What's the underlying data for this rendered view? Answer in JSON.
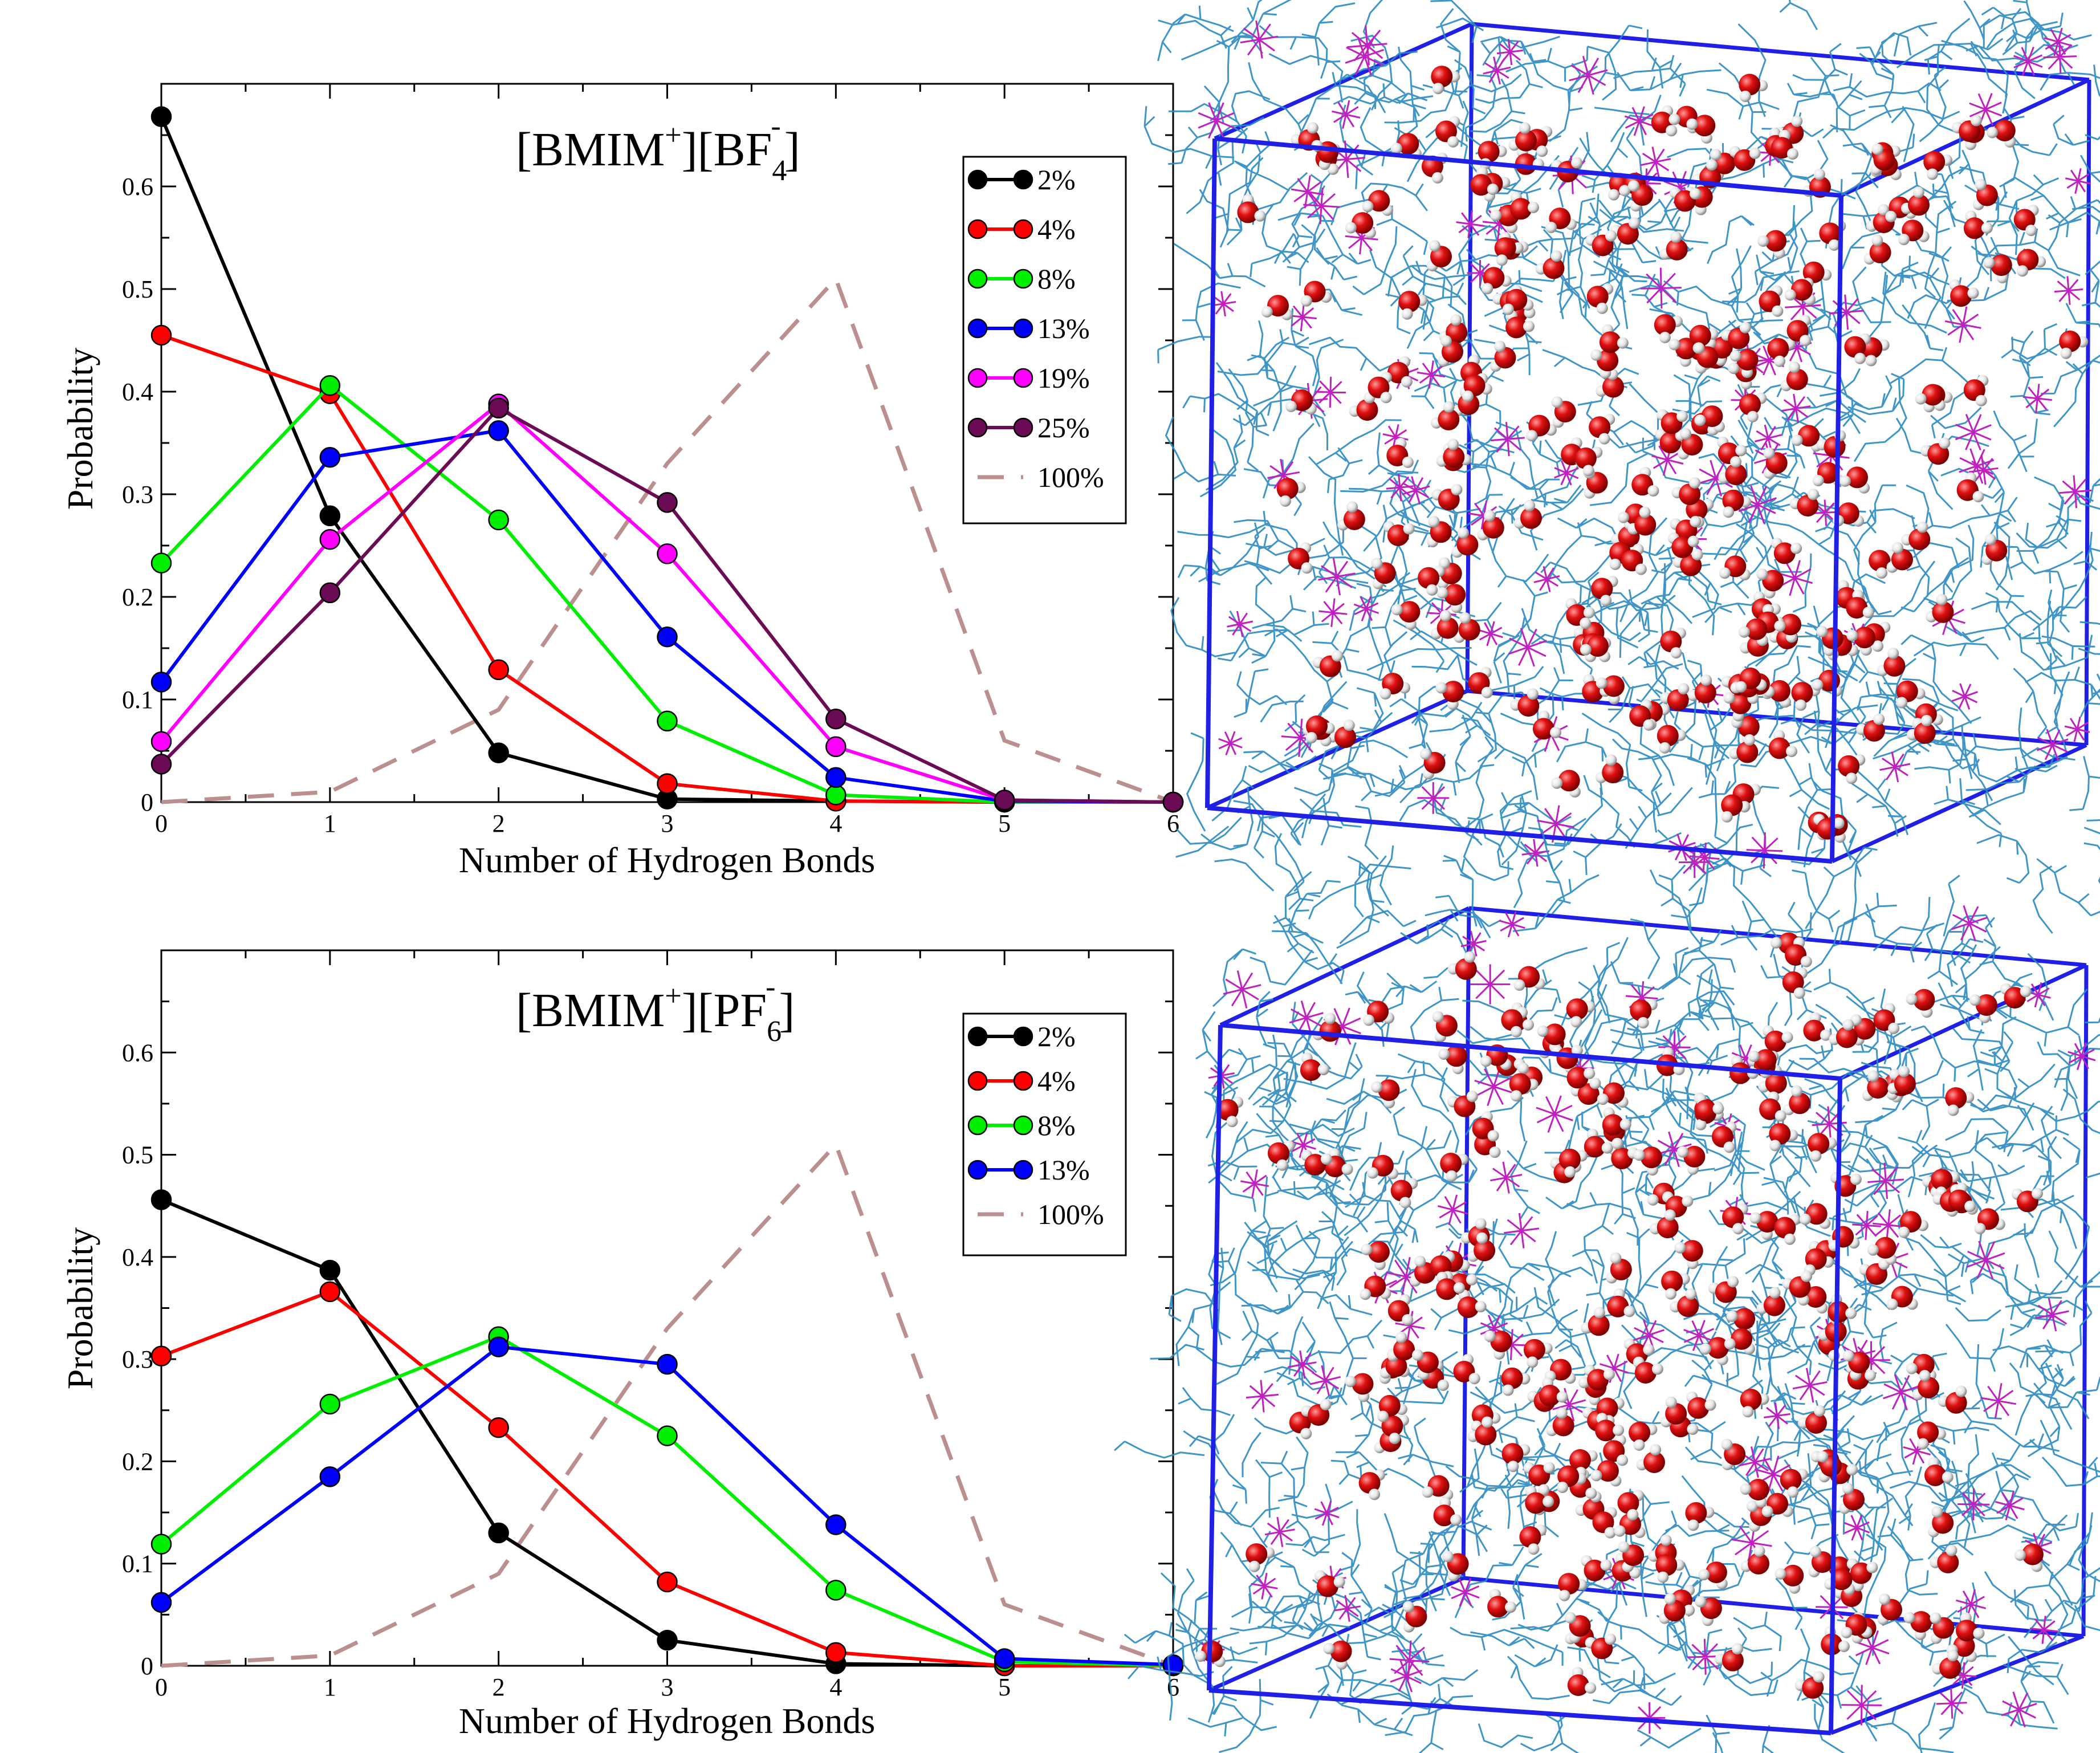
{
  "chart_data": [
    {
      "type": "line",
      "title": {
        "base": "[BMIM",
        "sup1": "+",
        "mid": "][BF",
        "sub": "4",
        "sup2": "-",
        "end": "]"
      },
      "xlabel": "Number of Hydrogen Bonds",
      "ylabel": "Probability",
      "x": [
        0,
        1,
        2,
        3,
        4,
        5,
        6
      ],
      "xlim": [
        0,
        6
      ],
      "ylim": [
        0,
        0.7
      ],
      "xticks": [
        "0",
        "1",
        "2",
        "3",
        "4",
        "5",
        "6"
      ],
      "yticks": [
        "0",
        "0.1",
        "0.2",
        "0.3",
        "0.4",
        "0.5",
        "0.6"
      ],
      "legend_position": "top-right",
      "series": [
        {
          "name": "2%",
          "color": "#000000",
          "style": "solid-markers",
          "values": [
            0.668,
            0.279,
            0.048,
            0.003,
            0.001,
            0.0,
            0.0
          ]
        },
        {
          "name": "4%",
          "color": "#ff0000",
          "style": "solid-markers",
          "values": [
            0.455,
            0.398,
            0.129,
            0.018,
            0.001,
            0.0,
            0.0
          ]
        },
        {
          "name": "8%",
          "color": "#00ee00",
          "style": "solid-markers",
          "values": [
            0.233,
            0.406,
            0.275,
            0.079,
            0.007,
            0.0,
            0.0
          ]
        },
        {
          "name": "13%",
          "color": "#0000ff",
          "style": "solid-markers",
          "values": [
            0.117,
            0.336,
            0.362,
            0.161,
            0.024,
            0.001,
            0.0
          ]
        },
        {
          "name": "19%",
          "color": "#ff00ff",
          "style": "solid-markers",
          "values": [
            0.059,
            0.256,
            0.388,
            0.242,
            0.054,
            0.002,
            0.0
          ]
        },
        {
          "name": "25%",
          "color": "#6b0a55",
          "style": "solid-markers",
          "values": [
            0.037,
            0.204,
            0.384,
            0.292,
            0.081,
            0.002,
            0.0
          ]
        },
        {
          "name": "100%",
          "color": "#bc8f8f",
          "style": "dashed",
          "values": [
            0.0,
            0.01,
            0.09,
            0.33,
            0.51,
            0.06,
            0.0
          ]
        }
      ]
    },
    {
      "type": "line",
      "title": {
        "base": "[BMIM",
        "sup1": "+",
        "mid": "][PF",
        "sub": "6",
        "sup2": "-",
        "end": "]"
      },
      "xlabel": "Number of Hydrogen Bonds",
      "ylabel": "Probability",
      "x": [
        0,
        1,
        2,
        3,
        4,
        5,
        6
      ],
      "xlim": [
        0,
        6
      ],
      "ylim": [
        0,
        0.7
      ],
      "xticks": [
        "0",
        "1",
        "2",
        "3",
        "4",
        "5",
        "6"
      ],
      "yticks": [
        "0",
        "0.1",
        "0.2",
        "0.3",
        "0.4",
        "0.5",
        "0.6"
      ],
      "legend_position": "top-right",
      "series": [
        {
          "name": "2%",
          "color": "#000000",
          "style": "solid-markers",
          "values": [
            0.456,
            0.387,
            0.13,
            0.025,
            0.002,
            0.0,
            0.0
          ]
        },
        {
          "name": "4%",
          "color": "#ff0000",
          "style": "solid-markers",
          "values": [
            0.303,
            0.366,
            0.233,
            0.082,
            0.013,
            0.0,
            0.0
          ]
        },
        {
          "name": "8%",
          "color": "#00ee00",
          "style": "solid-markers",
          "values": [
            0.119,
            0.256,
            0.322,
            0.225,
            0.074,
            0.004,
            0.0
          ]
        },
        {
          "name": "13%",
          "color": "#0000ff",
          "style": "solid-markers",
          "values": [
            0.062,
            0.185,
            0.312,
            0.295,
            0.138,
            0.007,
            0.001
          ]
        },
        {
          "name": "100%",
          "color": "#bc8f8f",
          "style": "dashed",
          "values": [
            0.0,
            0.01,
            0.09,
            0.33,
            0.51,
            0.06,
            0.0
          ]
        }
      ]
    }
  ],
  "snapshots": [
    {
      "name": "snapshot-bf4",
      "box_color": "#1f1fe6",
      "water_color": "#d40000",
      "ion_color": "#2a8ac0",
      "anion_color": "#c020c0",
      "seed": 11
    },
    {
      "name": "snapshot-pf6",
      "box_color": "#1f1fe6",
      "water_color": "#d40000",
      "ion_color": "#2a8ac0",
      "anion_color": "#c020c0",
      "seed": 29
    }
  ]
}
